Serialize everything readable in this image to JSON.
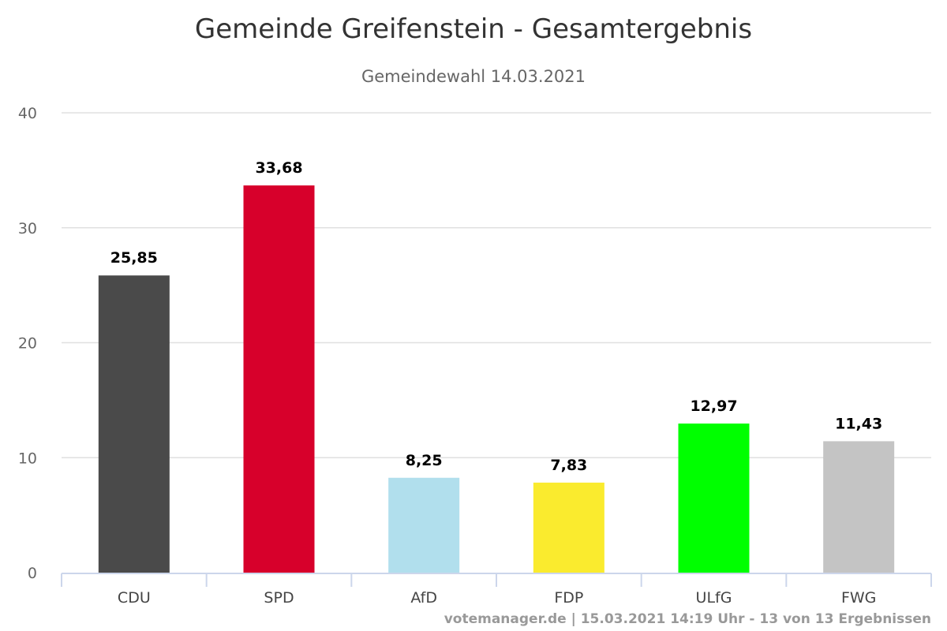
{
  "chart_data": {
    "type": "bar",
    "title": "Gemeinde Greifenstein - Gesamtergebnis",
    "subtitle": "Gemeindewahl 14.03.2021",
    "categories": [
      "CDU",
      "SPD",
      "AfD",
      "FDP",
      "ULfG",
      "FWG"
    ],
    "values": [
      25.85,
      33.68,
      8.25,
      7.83,
      12.97,
      11.43
    ],
    "value_labels": [
      "25,85",
      "33,68",
      "8,25",
      "7,83",
      "12,97",
      "11,43"
    ],
    "colors": [
      "#4a4a4a",
      "#d7002b",
      "#b1dfed",
      "#faeb2e",
      "#00ff00",
      "#c4c4c4"
    ],
    "ylim": [
      0,
      40
    ],
    "yticks": [
      "0",
      "10",
      "20",
      "30",
      "40"
    ],
    "xlabel": "",
    "ylabel": "",
    "grid": true,
    "legend": "none",
    "credit": "votemanager.de | 15.03.2021 14:19 Uhr - 13 von 13 Ergebnissen"
  }
}
